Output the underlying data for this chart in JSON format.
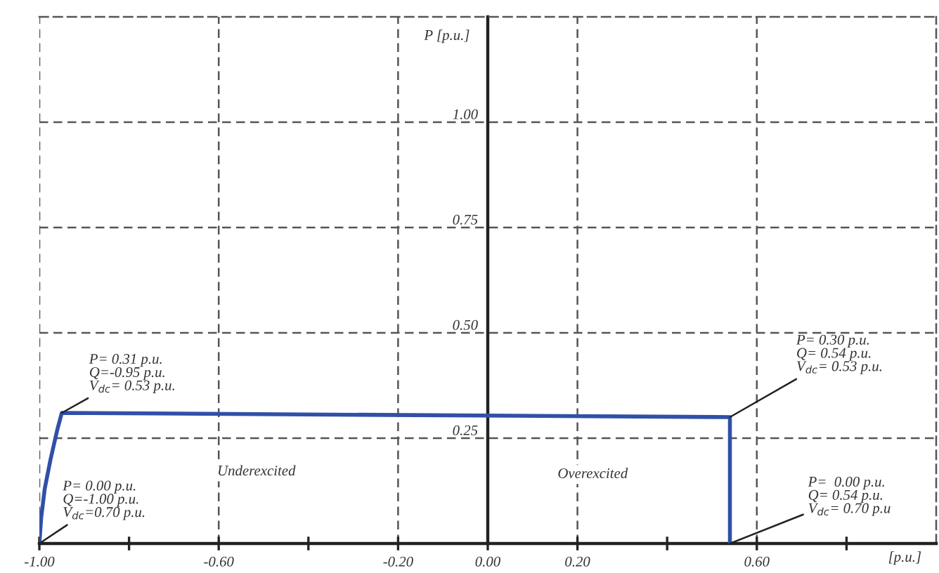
{
  "chart_data": {
    "type": "line",
    "xlabel": "[p.u.]",
    "ylabel": "P [p.u.]",
    "series": [
      {
        "color": "#3050a8",
        "x": [
          -1.0,
          -0.996,
          -0.988,
          -0.975,
          -0.96,
          -0.95,
          0.54,
          0.54
        ],
        "values": [
          0.0,
          0.06,
          0.13,
          0.2,
          0.27,
          0.31,
          0.3,
          0.0
        ]
      }
    ],
    "xlim": [
      -1.0,
      1.0
    ],
    "ylim": [
      0,
      1.25
    ],
    "xticks": [
      {
        "value": -1.0,
        "label": "-1.00"
      },
      {
        "value": -0.8,
        "label": null
      },
      {
        "value": -0.6,
        "label": "-0.60"
      },
      {
        "value": -0.4,
        "label": null
      },
      {
        "value": -0.2,
        "label": "-0.20"
      },
      {
        "value": 0.0,
        "label": "0.00"
      },
      {
        "value": 0.2,
        "label": "0.20"
      },
      {
        "value": 0.4,
        "label": null
      },
      {
        "value": 0.6,
        "label": "0.60"
      },
      {
        "value": 0.8,
        "label": null
      }
    ],
    "yticks": [
      {
        "value": 0.25,
        "label": "0.25"
      },
      {
        "value": 0.5,
        "label": "0.50"
      },
      {
        "value": 0.75,
        "label": "0.75"
      },
      {
        "value": 1.0,
        "label": "1.00"
      }
    ],
    "annotations": [
      {
        "text": "P= 0.31 p.u.\nQ=-0.95 p.u.\nV$_{dc}$= 0.53 p.u.",
        "x": -0.95,
        "y": 0.31
      },
      {
        "text": "P= 0.00 p.u.\nQ=-1.00 p.u.\nV$_{dc}$=0.70 p.u.",
        "x": -1.0,
        "y": 0.0
      },
      {
        "text": "P= 0.30 p.u.\nQ= 0.54 p.u.\nV$_{dc}$= 0.53 p.u.",
        "x": 0.54,
        "y": 0.3
      },
      {
        "text": "P=  0.00 p.u.\nQ= 0.54 p.u.\nV$_{dc}$= 0.70 p.u",
        "x": 0.54,
        "y": 0.0
      },
      "Underexcited",
      "Overexcited"
    ],
    "grid": true,
    "legend": false,
    "marker": "none",
    "line_style": "solid"
  }
}
